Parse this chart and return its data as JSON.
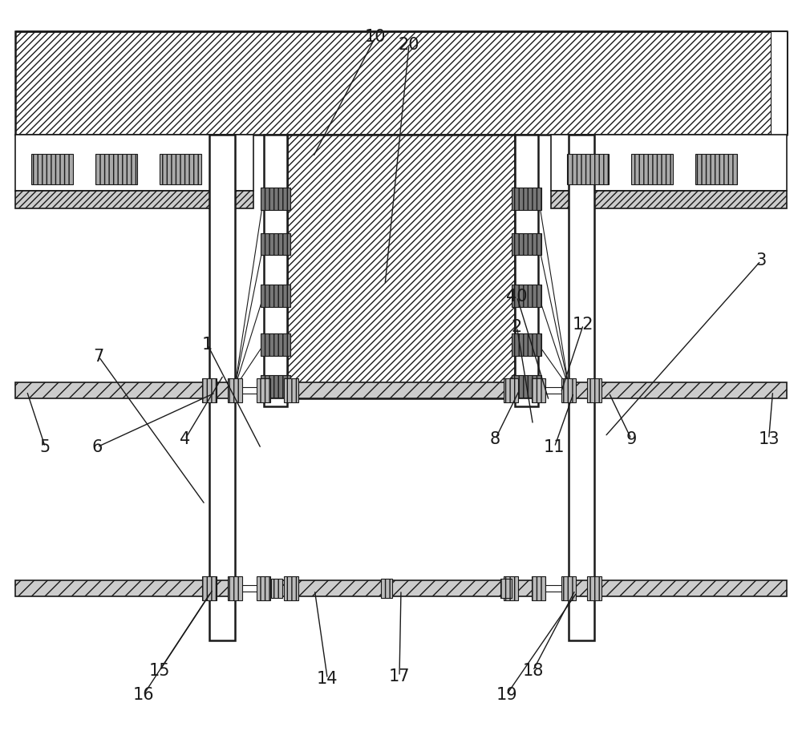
{
  "bg_color": "#ffffff",
  "line_color": "#1a1a1a",
  "fig_width": 10.0,
  "fig_height": 9.17,
  "dpi": 100
}
